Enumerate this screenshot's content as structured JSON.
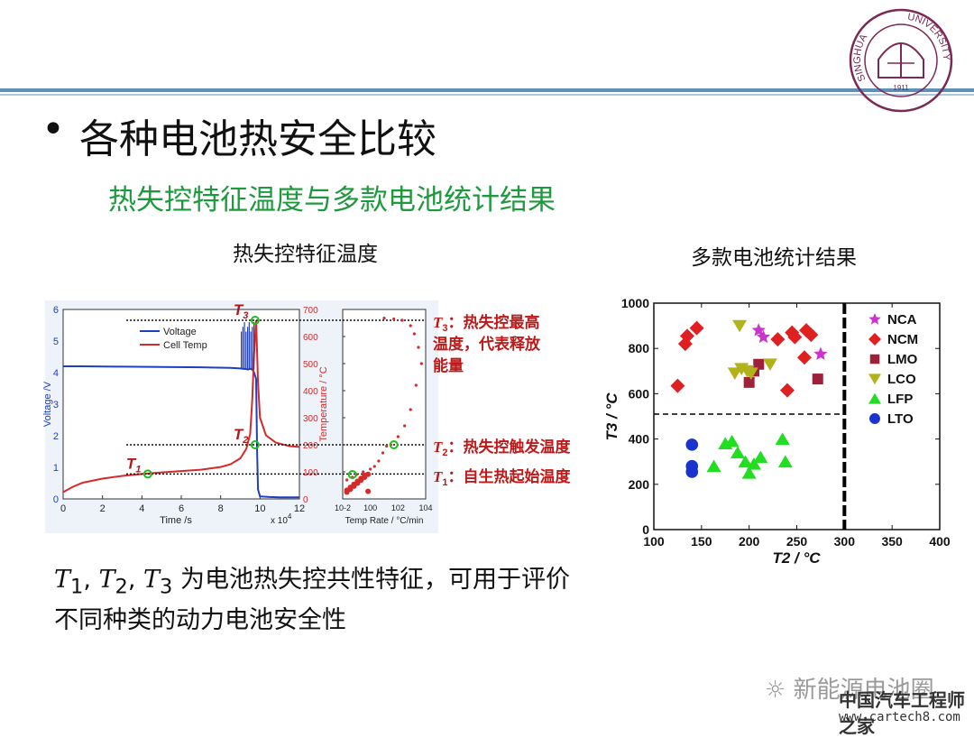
{
  "slide": {
    "bullet": "•",
    "title": "各种电池热安全比较",
    "subtitle": "热失控特征温度与多款电池统计结果",
    "left_caption": "热失控特征温度",
    "right_caption": "多款电池统计结果",
    "bottom_line1_prefix": "T",
    "bottom_line1_sub1": "1",
    "bottom_line1_sub2": "2",
    "bottom_line1_sub3": "3",
    "bottom_line1_text": "为电池热失控共性特征，可用于评价",
    "bottom_line2": "不同种类的动力电池安全性",
    "logo_text_left": "SINGHUA",
    "logo_text_right": "UNIVERSITY",
    "logo_year": "1911"
  },
  "watermark": {
    "account": "新能源电池圈",
    "site_name": "中国汽车工程师之家",
    "site_url": "www.cartech8.com"
  },
  "chart_data": [
    {
      "type": "line",
      "title": "",
      "xlabel": "Time /s",
      "x_exponent_label": "x 10",
      "x_exponent_power": "4",
      "ylabel_left": "Voltage /V",
      "ylabel_right": "Temperature / °C",
      "xlim": [
        0,
        12
      ],
      "ylim_left": [
        0,
        6
      ],
      "ylim_right": [
        0,
        700
      ],
      "x_ticks": [
        "0",
        "2",
        "4",
        "6",
        "8",
        "10",
        "12"
      ],
      "y_left_ticks": [
        "0",
        "1",
        "2",
        "3",
        "4",
        "5",
        "6"
      ],
      "y_right_ticks": [
        "0",
        "100",
        "200",
        "300",
        "400",
        "500",
        "600",
        "700"
      ],
      "legend": [
        "Voltage",
        "Cell Temp"
      ],
      "colors": {
        "voltage": "#1f3fbf",
        "temp": "#d42a2a"
      },
      "series": [
        {
          "name": "Voltage",
          "axis": "left",
          "x": [
            0,
            0.1,
            1,
            3,
            5,
            7,
            8.5,
            9.0,
            9.4,
            9.5,
            9.6,
            9.7,
            9.8,
            9.85,
            9.9,
            10,
            10.5,
            11,
            12
          ],
          "y": [
            4.2,
            4.2,
            4.2,
            4.19,
            4.18,
            4.17,
            4.15,
            4.13,
            4.1,
            4.12,
            4.1,
            4.0,
            3.8,
            1.5,
            0.3,
            0.08,
            0.06,
            0.05,
            0.05
          ]
        },
        {
          "name": "Cell Temp",
          "axis": "right",
          "x": [
            0,
            0.5,
            1,
            2,
            3,
            4,
            5,
            6,
            7,
            8,
            8.5,
            9,
            9.3,
            9.5,
            9.6,
            9.7,
            9.8,
            9.9,
            10,
            10.3,
            10.8,
            11.5,
            12
          ],
          "y": [
            25,
            45,
            60,
            75,
            85,
            92,
            98,
            103,
            108,
            118,
            128,
            150,
            185,
            240,
            360,
            540,
            660,
            430,
            300,
            235,
            208,
            195,
            192
          ]
        }
      ],
      "markers": [
        {
          "label": "T",
          "sub": "1",
          "x": 4.3,
          "y": 92
        },
        {
          "label": "T",
          "sub": "2",
          "x": 9.75,
          "y": 200
        },
        {
          "label": "T",
          "sub": "3",
          "x": 9.75,
          "y": 660
        }
      ]
    },
    {
      "type": "scatter",
      "title": "",
      "xlabel": "Temp Rate / °C/min",
      "x_scale": "log",
      "xlim": [
        0.01,
        10000
      ],
      "ylim": [
        0,
        700
      ],
      "x_ticks": [
        "10-2",
        "100",
        "102",
        "104"
      ],
      "y_ticks": [
        "0",
        "100",
        "200",
        "300",
        "400",
        "500",
        "600",
        "700"
      ],
      "color": "#d42a2a",
      "points": [
        [
          0.02,
          70
        ],
        [
          0.05,
          80
        ],
        [
          0.1,
          90
        ],
        [
          0.3,
          100
        ],
        [
          1,
          110
        ],
        [
          2,
          120
        ],
        [
          4,
          140
        ],
        [
          8,
          170
        ],
        [
          15,
          195
        ],
        [
          30,
          200
        ],
        [
          100,
          230
        ],
        [
          300,
          270
        ],
        [
          800,
          330
        ],
        [
          2000,
          420
        ],
        [
          5000,
          500
        ],
        [
          3000,
          560
        ],
        [
          1500,
          610
        ],
        [
          800,
          640
        ],
        [
          200,
          660
        ],
        [
          50,
          665
        ],
        [
          10,
          668
        ]
      ],
      "annotations": [
        {
          "marker": "T3",
          "y": 660,
          "text": "热失控最高温度，代表释放能量",
          "lines": [
            "：热失控最高",
            "温度，代表释放",
            "能量"
          ]
        },
        {
          "marker": "T2",
          "y": 200,
          "text": "：热失控触发温度"
        },
        {
          "marker": "T1",
          "y": 90,
          "text": "：自生热起始温度"
        }
      ]
    },
    {
      "type": "scatter",
      "title": "",
      "xlabel": "T2 / °C",
      "ylabel": "T3 / °C",
      "xlim": [
        100,
        400
      ],
      "ylim": [
        0,
        1000
      ],
      "x_ticks": [
        "100",
        "150",
        "200",
        "250",
        "300",
        "350",
        "400"
      ],
      "y_ticks": [
        "0",
        "200",
        "400",
        "600",
        "800",
        "1000"
      ],
      "reference_lines": {
        "vertical_x": 300,
        "horizontal_y": 510
      },
      "legend_position": "top-right",
      "series": [
        {
          "name": "NCA",
          "marker": "star",
          "color": "#cc33cc",
          "points": [
            [
              210,
              880
            ],
            [
              215,
              850
            ],
            [
              275,
              775
            ]
          ]
        },
        {
          "name": "NCM",
          "marker": "diamond",
          "color": "#e02020",
          "points": [
            [
              125,
              635
            ],
            [
              133,
              820
            ],
            [
              135,
              855
            ],
            [
              145,
              890
            ],
            [
              230,
              840
            ],
            [
              245,
              870
            ],
            [
              248,
              850
            ],
            [
              260,
              880
            ],
            [
              265,
              860
            ],
            [
              258,
              760
            ],
            [
              240,
              615
            ]
          ]
        },
        {
          "name": "LMO",
          "marker": "square",
          "color": "#a0203a",
          "points": [
            [
              200,
              650
            ],
            [
              205,
              700
            ],
            [
              210,
              730
            ],
            [
              272,
              665
            ]
          ]
        },
        {
          "name": "LCO",
          "marker": "triangle-down",
          "color": "#b2b21a",
          "points": [
            [
              190,
              900
            ],
            [
              185,
              690
            ],
            [
              192,
              710
            ],
            [
              198,
              700
            ],
            [
              202,
              690
            ],
            [
              222,
              730
            ]
          ]
        },
        {
          "name": "LFP",
          "marker": "triangle-up",
          "color": "#22dd22",
          "points": [
            [
              163,
              280
            ],
            [
              175,
              380
            ],
            [
              182,
              390
            ],
            [
              188,
              340
            ],
            [
              196,
              300
            ],
            [
              200,
              250
            ],
            [
              205,
              290
            ],
            [
              212,
              320
            ],
            [
              235,
              400
            ],
            [
              238,
              300
            ]
          ]
        },
        {
          "name": "LTO",
          "marker": "circle",
          "color": "#1a33cc",
          "points": [
            [
              140,
              375
            ],
            [
              140,
              280
            ],
            [
              140,
              255
            ]
          ]
        }
      ]
    }
  ]
}
